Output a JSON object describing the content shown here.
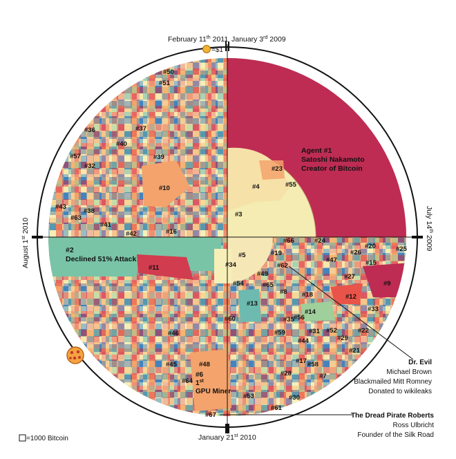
{
  "dates": {
    "top_left": "February 11",
    "top_left_sup": "th",
    "top_left_year": " 2011",
    "top_right": "January 3",
    "top_right_sup": "rd",
    "top_right_year": " 2009",
    "right": "July 14",
    "right_sup": "th",
    "right_year": " 2009",
    "left": "August 1",
    "left_sup": "st",
    "left_year": " 2010",
    "bottom": "January 21",
    "bottom_sup": "st",
    "bottom_year": " 2010"
  },
  "coin_value": "=$1",
  "legend_scale": "=1000 Bitcoin",
  "agent1": {
    "line1": "Agent #1",
    "line2": "Satoshi Nakamoto",
    "line3": "Creator of Bitcoin"
  },
  "agent2": {
    "line1": "#2",
    "line2": "Declined 51% Attack"
  },
  "agent6": {
    "line1": "#6",
    "line2": "1",
    "line2_sup": "st",
    "line3": "GPU Miner"
  },
  "dr_evil": {
    "title": "Dr. Evil",
    "line1": "Michael Brown",
    "line2": "Blackmailed Mitt Romney",
    "line3": "Donated to wikileaks"
  },
  "dread_pirate": {
    "title": "The Dread Pirate Roberts",
    "line1": "Ross Ulbricht",
    "line2": "Founder of the Silk Road"
  },
  "numbered_labels": [
    "#3",
    "#4",
    "#5",
    "#7",
    "#8",
    "#9",
    "#10",
    "#11",
    "#12",
    "#13",
    "#14",
    "#15",
    "#16",
    "#17",
    "#18",
    "#19",
    "#20",
    "#21",
    "#22",
    "#23",
    "#24",
    "#25",
    "#26",
    "#27",
    "#28",
    "#29",
    "#30",
    "#31",
    "#32",
    "#33",
    "#34",
    "#35",
    "#36",
    "#37",
    "#38",
    "#39",
    "#40",
    "#41",
    "#42",
    "#43",
    "#44",
    "#45",
    "#46",
    "#47",
    "#48",
    "#49",
    "#50",
    "#51",
    "#52",
    "#53",
    "#54",
    "#55",
    "#56",
    "#57",
    "#58",
    "#59",
    "#60",
    "#61",
    "#62",
    "#63",
    "#64",
    "#65",
    "#66",
    "#67"
  ],
  "palette": [
    "#e9544a",
    "#f3a36b",
    "#fbe3a4",
    "#f6efb8",
    "#9fcf9a",
    "#6cbab0",
    "#4d94c8",
    "#3a6fb0",
    "#d23c4f",
    "#f7c27a",
    "#b8d9a6",
    "#e77a7a"
  ],
  "colors": {
    "agent1": "#be2c53",
    "agent3": "#f4ecb2",
    "agent4": "#f6e1a8",
    "agent2": "#79c4a6",
    "outline": "#111111"
  }
}
